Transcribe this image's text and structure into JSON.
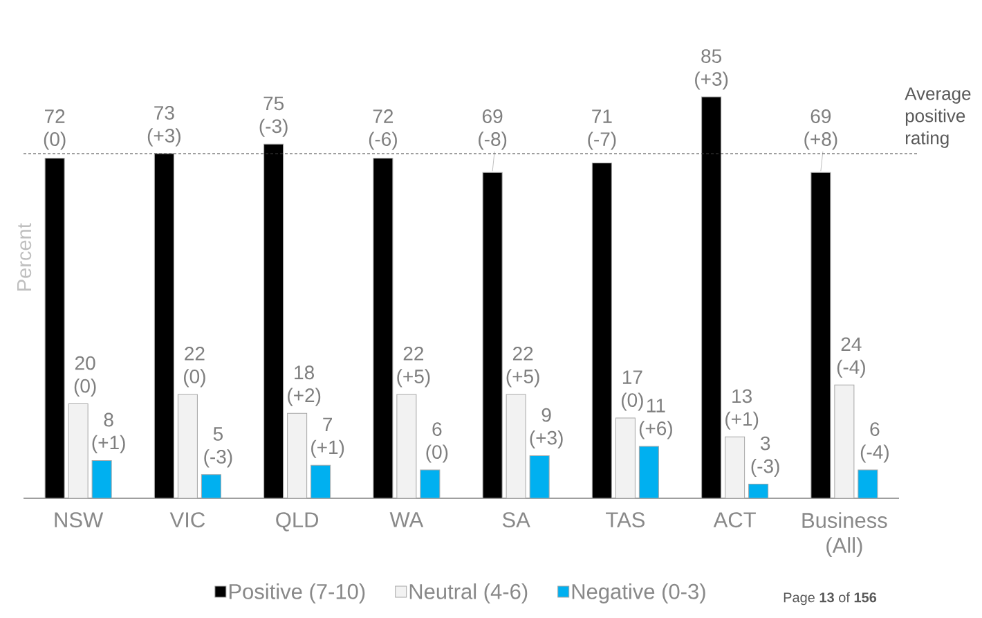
{
  "chart_data": {
    "type": "bar",
    "ylabel": "Percent",
    "categories": [
      "NSW",
      "VIC",
      "QLD",
      "WA",
      "SA",
      "TAS",
      "ACT",
      "Business (All)"
    ],
    "series": [
      {
        "name": "Positive (7-10)",
        "color": "#000000",
        "values": [
          72,
          73,
          75,
          72,
          69,
          71,
          85,
          69
        ],
        "value_labels": [
          "72 (0)",
          "73 (+3)",
          "75 (-3)",
          "72 (-6)",
          "69 (-8)",
          "71 (-7)",
          "85 (+3)",
          "69 (+8)"
        ]
      },
      {
        "name": "Neutral (4-6)",
        "color": "#f2f2f2",
        "values": [
          20,
          22,
          18,
          22,
          22,
          17,
          13,
          24
        ],
        "value_labels": [
          "20 (0)",
          "22 (0)",
          "18 (+2)",
          "22 (+5)",
          "22 (+5)",
          "17 (0)",
          "13 (+1)",
          "24 (-4)"
        ]
      },
      {
        "name": "Negative (0-3)",
        "color": "#00b0f0",
        "values": [
          8,
          5,
          7,
          6,
          9,
          11,
          3,
          6
        ],
        "value_labels": [
          "8 (+1)",
          "5 (-3)",
          "7 (+1)",
          "6 (0)",
          "9 (+3)",
          "11 (+6)",
          "3 (-3)",
          "6 (-4)"
        ]
      }
    ],
    "tick_labels": "x",
    "legend": "bottom",
    "ref_lines": [
      {
        "axis": "y",
        "value": 73,
        "label": "Average positive rating",
        "color": "#404040",
        "line_style": "dashed"
      }
    ],
    "annotations": [
      "Page **13** of **156**"
    ]
  }
}
